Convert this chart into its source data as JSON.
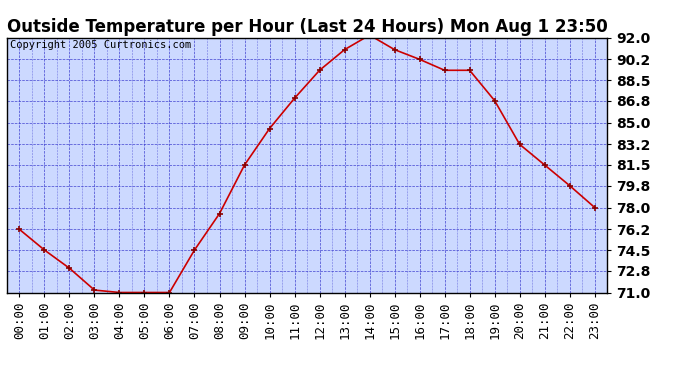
{
  "title": "Outside Temperature per Hour (Last 24 Hours) Mon Aug 1 23:50",
  "copyright": "Copyright 2005 Curtronics.com",
  "hours": [
    "00:00",
    "01:00",
    "02:00",
    "03:00",
    "04:00",
    "05:00",
    "06:00",
    "07:00",
    "08:00",
    "09:00",
    "10:00",
    "11:00",
    "12:00",
    "13:00",
    "14:00",
    "15:00",
    "16:00",
    "17:00",
    "18:00",
    "19:00",
    "20:00",
    "21:00",
    "22:00",
    "23:00"
  ],
  "values": [
    76.2,
    74.5,
    73.0,
    71.2,
    71.0,
    71.0,
    71.0,
    74.5,
    77.5,
    81.5,
    84.5,
    87.0,
    89.3,
    91.0,
    92.2,
    91.0,
    90.2,
    89.3,
    89.3,
    86.8,
    83.2,
    81.5,
    79.8,
    78.0
  ],
  "ylim": [
    71.0,
    92.0
  ],
  "yticks": [
    71.0,
    72.8,
    74.5,
    76.2,
    78.0,
    79.8,
    81.5,
    83.2,
    85.0,
    86.8,
    88.5,
    90.2,
    92.0
  ],
  "line_color": "#cc0000",
  "marker_color": "#880000",
  "bg_color": "#ffffff",
  "plot_area_bg": "#ccd9ff",
  "grid_color": "#3333cc",
  "border_color": "#000000",
  "title_color": "#000000",
  "copyright_color": "#000000",
  "title_fontsize": 12,
  "copyright_fontsize": 7.5,
  "tick_fontsize": 9,
  "ytick_fontsize": 10
}
